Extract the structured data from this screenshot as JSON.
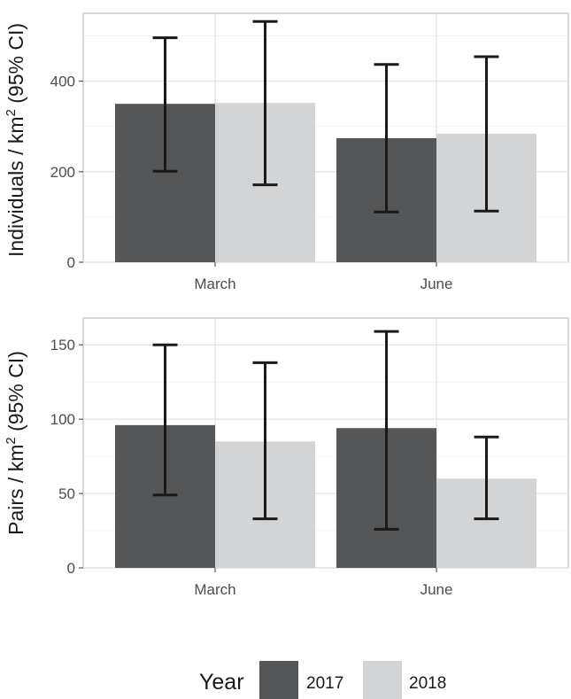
{
  "legend": {
    "title": "Year",
    "entries": [
      {
        "label": "2017",
        "color": "#555658"
      },
      {
        "label": "2018",
        "color": "#d3d4d6"
      }
    ]
  },
  "chart_data": [
    {
      "type": "bar",
      "ylabel_main": "Individuals / km",
      "ylabel_sup": "2",
      "ylabel_tail": " (95% CI)",
      "categories": [
        "March",
        "June"
      ],
      "ylim": [
        0,
        550
      ],
      "yticks": [
        0,
        200,
        400
      ],
      "grid": true,
      "series": [
        {
          "name": "2017",
          "color": "#555658",
          "values": [
            350,
            274
          ],
          "ci_low": [
            201,
            111
          ],
          "ci_high": [
            496,
            437
          ]
        },
        {
          "name": "2018",
          "color": "#d3d4d6",
          "values": [
            352,
            284
          ],
          "ci_low": [
            171,
            113
          ],
          "ci_high": [
            532,
            454
          ]
        }
      ]
    },
    {
      "type": "bar",
      "ylabel_main": "Pairs / km",
      "ylabel_sup": "2",
      "ylabel_tail": " (95% CI)",
      "categories": [
        "March",
        "June"
      ],
      "ylim": [
        0,
        168
      ],
      "yticks": [
        0,
        50,
        100,
        150
      ],
      "grid": true,
      "series": [
        {
          "name": "2017",
          "color": "#555658",
          "values": [
            96,
            94
          ],
          "ci_low": [
            49,
            26
          ],
          "ci_high": [
            150,
            159
          ]
        },
        {
          "name": "2018",
          "color": "#d3d4d6",
          "values": [
            85,
            60
          ],
          "ci_low": [
            33,
            33
          ],
          "ci_high": [
            138,
            88
          ]
        }
      ]
    }
  ]
}
